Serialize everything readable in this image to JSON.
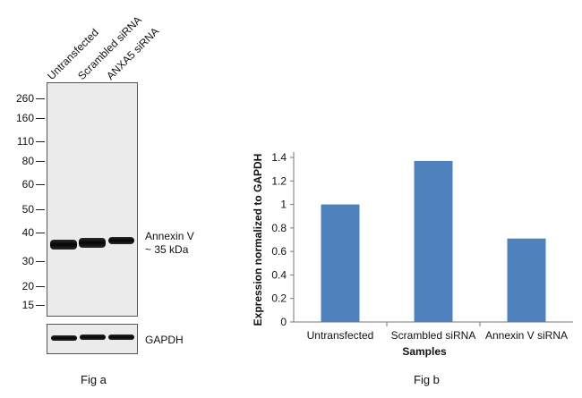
{
  "fig_a": {
    "lanes": [
      "Untransfected",
      "Scrambled siRNA",
      "ANXA5 siRNA"
    ],
    "markers": [
      "260",
      "160",
      "110",
      "80",
      "60",
      "50",
      "40",
      "30",
      "20",
      "15"
    ],
    "target_label_line1": "Annexin V",
    "target_label_line2": "~ 35 kDa",
    "loading_label": "GAPDH",
    "caption": "Fig a"
  },
  "fig_b": {
    "caption": "Fig b"
  },
  "chart_data": {
    "type": "bar",
    "categories": [
      "Untransfected",
      "Scrambled siRNA",
      "Annexin V siRNA"
    ],
    "values": [
      1.0,
      1.37,
      0.71
    ],
    "title": "",
    "xlabel": "Samples",
    "ylabel": "Expression normalized to GAPDH",
    "ylim": [
      0,
      1.4
    ],
    "yticks": [
      "0",
      "0.2",
      "0.4",
      "0.6",
      "0.8",
      "1",
      "1.2",
      "1.4"
    ],
    "grid": false,
    "bar_color": "#4f81bd"
  }
}
